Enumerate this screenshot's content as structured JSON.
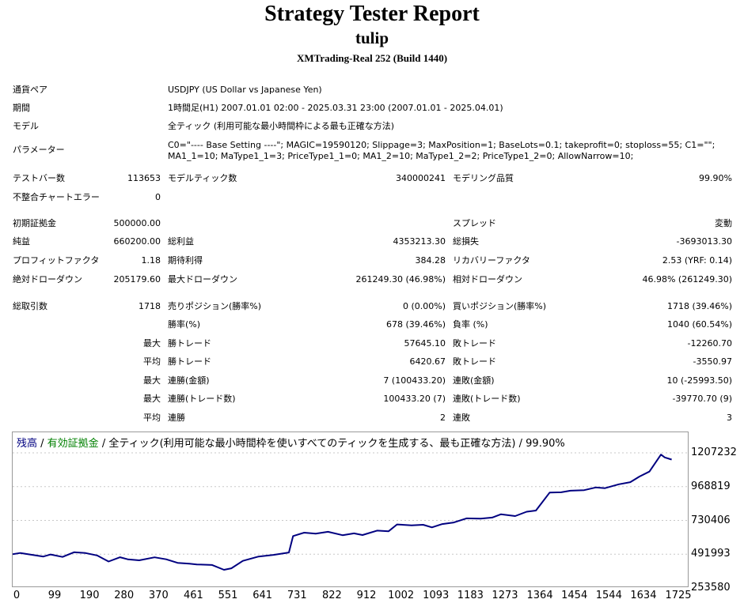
{
  "header": {
    "title": "Strategy Tester Report",
    "subtitle": "tulip",
    "server": "XMTrading-Real 252 (Build 1440)"
  },
  "settings": {
    "pair_label": "通貨ペア",
    "pair_value": "USDJPY (US Dollar vs Japanese Yen)",
    "period_label": "期間",
    "period_value": "1時間足(H1) 2007.01.01 02:00 - 2025.03.31 23:00 (2007.01.01 - 2025.04.01)",
    "model_label": "モデル",
    "model_value": "全ティック (利用可能な最小時間枠による最も正確な方法)",
    "params_label": "パラメーター",
    "params_line1": "C0=\"---- Base Setting ----\"; MAGIC=19590120; Slippage=3; MaxPosition=1; BaseLots=0.1; takeprofit=0; stoploss=55; C1=\"\";",
    "params_line2": "MA1_1=10; MaType1_1=3; PriceType1_1=0; MA1_2=10; MaType1_2=2; PriceType1_2=0; AllowNarrow=10;"
  },
  "stats": {
    "bars_label": "テストバー数",
    "bars_value": "113653",
    "ticks_label": "モデルティック数",
    "ticks_value": "340000241",
    "quality_label": "モデリング品質",
    "quality_value": "99.90%",
    "mismatch_label": "不整合チャートエラー",
    "mismatch_value": "0",
    "deposit_label": "初期証拠金",
    "deposit_value": "500000.00",
    "spread_label": "スプレッド",
    "spread_value": "変動",
    "net_label": "純益",
    "net_value": "660200.00",
    "gross_profit_label": "総利益",
    "gross_profit_value": "4353213.30",
    "gross_loss_label": "総損失",
    "gross_loss_value": "-3693013.30",
    "pf_label": "プロフィットファクタ",
    "pf_value": "1.18",
    "expected_label": "期待利得",
    "expected_value": "384.28",
    "recovery_label": "リカバリーファクタ",
    "recovery_value": "2.53 (YRF: 0.14)",
    "abs_dd_label": "絶対ドローダウン",
    "abs_dd_value": "205179.60",
    "max_dd_label": "最大ドローダウン",
    "max_dd_value": "261249.30 (46.98%)",
    "rel_dd_label": "相対ドローダウン",
    "rel_dd_value": "46.98% (261249.30)",
    "trades_label": "総取引数",
    "trades_value": "1718",
    "short_label": "売りポジション(勝率%)",
    "short_value": "0 (0.00%)",
    "long_label": "買いポジション(勝率%)",
    "long_value": "1718 (39.46%)",
    "winrate_label": "勝率(%)",
    "winrate_value": "678 (39.46%)",
    "lossrate_label": "負率 (%)",
    "lossrate_value": "1040 (60.54%)",
    "max_label": "最大",
    "avg_label": "平均",
    "win_trade_label": "勝トレード",
    "loss_trade_label": "敗トレード",
    "max_win_value": "57645.10",
    "max_loss_value": "-12260.70",
    "avg_win_value": "6420.67",
    "avg_loss_value": "-3550.97",
    "consec_win_amt_label": "連勝(金額)",
    "consec_win_amt_value": "7 (100433.20)",
    "consec_loss_amt_label": "連敗(金額)",
    "consec_loss_amt_value": "10 (-25993.50)",
    "consec_win_trd_label": "連勝(トレード数)",
    "consec_win_trd_value": "100433.20 (7)",
    "consec_loss_trd_label": "連敗(トレード数)",
    "consec_loss_trd_value": "-39770.70 (9)",
    "avg_consec_win_label": "連勝",
    "avg_consec_win_value": "2",
    "avg_consec_loss_label": "連敗",
    "avg_consec_loss_value": "3"
  },
  "legend": {
    "balance": "残高",
    "sep1": " / ",
    "equity": "有効証拠金",
    "sep2": " / ",
    "model": "全ティック(利用可能な最小時間枠を使いすべてのティックを生成する、最も正確な方法)",
    "sep3": " / ",
    "quality": "99.90%",
    "balance_color": "#000080",
    "equity_color": "#008000"
  },
  "chart_data": {
    "type": "line",
    "series": [
      {
        "name": "残高",
        "color": "#000080",
        "x": [
          0,
          20,
          50,
          80,
          99,
          130,
          160,
          190,
          220,
          250,
          280,
          300,
          330,
          370,
          400,
          430,
          461,
          480,
          520,
          551,
          570,
          600,
          641,
          680,
          720,
          731,
          760,
          790,
          822,
          860,
          890,
          912,
          950,
          980,
          1002,
          1040,
          1070,
          1093,
          1120,
          1150,
          1183,
          1220,
          1250,
          1273,
          1310,
          1340,
          1364,
          1400,
          1430,
          1454,
          1490,
          1520,
          1544,
          1580,
          1610,
          1634,
          1660,
          1690,
          1700,
          1718
        ],
        "y": [
          491993,
          500500,
          488000,
          475600,
          490000,
          472800,
          505500,
          500000,
          483500,
          440500,
          470700,
          455800,
          448500,
          470000,
          455800,
          430900,
          425100,
          420000,
          415600,
          382000,
          392300,
          444800,
          475600,
          487500,
          504000,
          620000,
          643800,
          636500,
          650000,
          626000,
          639000,
          627000,
          658400,
          654000,
          702000,
          696000,
          700000,
          681500,
          705000,
          716000,
          745000,
          743000,
          750600,
          774000,
          761000,
          792000,
          800000,
          927000,
          929000,
          940000,
          944000,
          963000,
          957700,
          985000,
          1000500,
          1040000,
          1075000,
          1195000,
          1175000,
          1160000
        ]
      }
    ],
    "xlim": [
      0,
      1760
    ],
    "ylim": [
      253580,
      1207232
    ],
    "yticks": [
      1207232,
      968819,
      730406,
      491993,
      253580
    ],
    "xticks": [
      0,
      99,
      190,
      280,
      370,
      461,
      551,
      641,
      731,
      822,
      912,
      1002,
      1093,
      1183,
      1273,
      1364,
      1454,
      1544,
      1634,
      1725
    ],
    "ytick_labels": [
      "1207232",
      "968819",
      "730406",
      "491993",
      "253580"
    ],
    "xtick_labels": [
      "0",
      "99",
      "190",
      "280",
      "370",
      "461",
      "551",
      "641",
      "731",
      "822",
      "912",
      "1002",
      "1093",
      "1183",
      "1273",
      "1364",
      "1454",
      "1544",
      "1634",
      "1725"
    ],
    "grid": true
  }
}
